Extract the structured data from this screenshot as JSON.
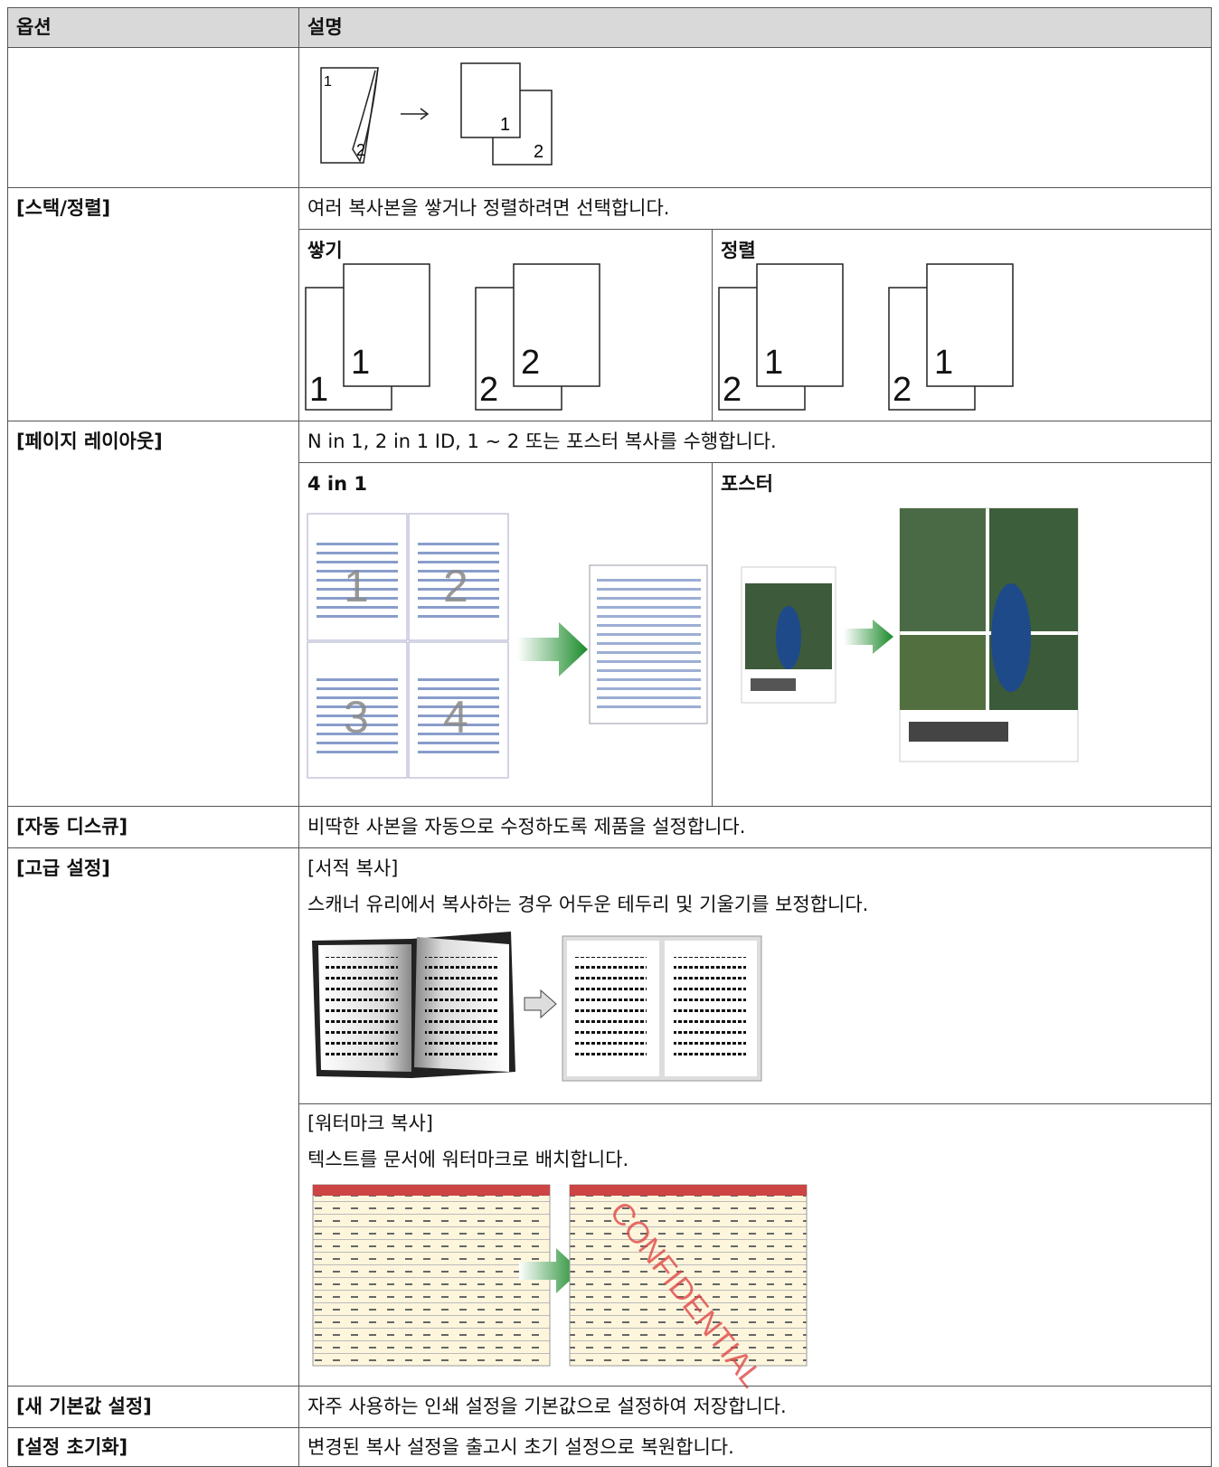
{
  "table": {
    "header": [
      "옵션",
      "설명"
    ],
    "rows": [
      {
        "diagram": {
          "labels": [
            "1",
            "2",
            "1",
            "2"
          ]
        }
      },
      {
        "option": "[스택/정렬]",
        "description": "여러 복사본을 쌓거나 정렬하려면 선택합니다.",
        "panels": [
          {
            "title": "쌓기",
            "labels": [
              "1",
              "1",
              "2",
              "2"
            ]
          },
          {
            "title": "정렬",
            "labels": [
              "2",
              "1",
              "2",
              "1"
            ]
          }
        ]
      },
      {
        "option": "[페이지 레이아웃]",
        "description": "N in 1, 2 in 1 ID, 1 ~ 2 또는 포스터 복사를 수행합니다.",
        "panels": [
          {
            "title": "4 in 1",
            "labels": [
              "1",
              "2",
              "3",
              "4"
            ]
          },
          {
            "title": "포스터"
          }
        ]
      },
      {
        "option": "[자동 디스큐]",
        "description": "비딱한 사본을 자동으로 수정하도록 제품을 설정합니다."
      },
      {
        "option": "[고급 설정]",
        "sections": [
          {
            "heading": "[서적 복사]",
            "description": "스캐너 유리에서 복사하는 경우 어두운 테두리 및 기울기를 보정합니다."
          },
          {
            "heading": "[워터마크 복사]",
            "description": "텍스트를 문서에 워터마크로 배치합니다.",
            "watermark": "CONFIDENTIAL"
          }
        ]
      },
      {
        "option": "[새 기본값 설정]",
        "description": "자주 사용하는 인쇄 설정을 기본값으로 설정하여 저장합니다."
      },
      {
        "option": "[설정 초기화]",
        "description": "변경된 복사 설정을 출고시 초기 설정으로 복원합니다."
      }
    ]
  }
}
